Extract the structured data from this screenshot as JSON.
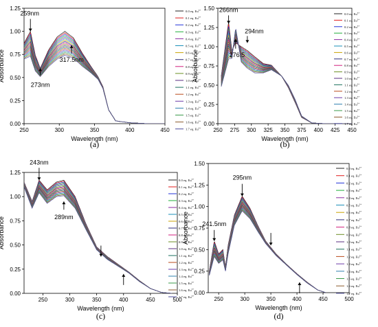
{
  "figure": {
    "legend_entries": [
      "0.0 eq. Eu",
      "0.1 eq. Eu",
      "0.2 eq. Eu",
      "0.3 eq. Eu",
      "0.4 eq. Eu",
      "0.5 eq. Eu",
      "0.6 eq. Eu",
      "0.7 eq. Eu",
      "0.8 eq. Eu",
      "0.9 eq. Eu",
      "1.0 eq. Eu",
      "1.1 eq. Eu",
      "1.2 eq. Eu",
      "1.3 eq. Eu",
      "1.4 eq. Eu",
      "1.5 eq. Eu",
      "1.6 eq. Eu",
      "1.7 eq. Eu"
    ],
    "legend_superscript": "3+",
    "series_colors": [
      "#202020",
      "#e01b1b",
      "#2030d8",
      "#1fae3a",
      "#8a2aa0",
      "#1a8fb8",
      "#c8a200",
      "#2b2b7a",
      "#d11d7c",
      "#6b8e23",
      "#5a2d82",
      "#1a6f5c",
      "#b84a1a",
      "#6a3aa8",
      "#2d7fae",
      "#3a9a4a",
      "#8b5a2b",
      "#4a4a9a"
    ]
  },
  "chart_data": [
    {
      "type": "line",
      "panel_label": "(a)",
      "xlabel": "Wavelength (nm)",
      "ylabel": "Absorbance",
      "xlim": [
        250,
        450
      ],
      "ylim": [
        0.0,
        1.25
      ],
      "xticks": [
        250,
        300,
        350,
        400,
        450
      ],
      "yticks": [
        "0.00",
        "0.25",
        "0.50",
        "0.75",
        "1.00",
        "1.25"
      ],
      "series_count": 18,
      "annotations": [
        {
          "text": "259nm",
          "x": 259,
          "y": 1.0
        },
        {
          "text": "273nm",
          "x": 273,
          "y": 0.6
        },
        {
          "text": "317.5nm",
          "x": 317.5,
          "y": 0.85
        }
      ],
      "curves": [
        {
          "name": "0.0 eq. Eu",
          "x": [
            250,
            259,
            266,
            273,
            285,
            297,
            308,
            320,
            333,
            345,
            355,
            362,
            370,
            380,
            400,
            425,
            450
          ],
          "y": [
            0.87,
            1.0,
            0.74,
            0.6,
            0.8,
            0.94,
            1.0,
            0.93,
            0.76,
            0.62,
            0.51,
            0.4,
            0.15,
            0.03,
            0.01,
            0.0,
            0.0
          ]
        },
        {
          "name": "1.7 eq. Eu",
          "x": [
            250,
            259,
            266,
            273,
            285,
            297,
            308,
            320,
            333,
            345,
            355,
            362,
            370,
            380,
            400,
            425,
            450
          ],
          "y": [
            0.7,
            0.73,
            0.57,
            0.51,
            0.62,
            0.7,
            0.74,
            0.71,
            0.62,
            0.55,
            0.48,
            0.38,
            0.15,
            0.03,
            0.01,
            0.0,
            0.0
          ]
        }
      ]
    },
    {
      "type": "line",
      "panel_label": "(b)",
      "xlabel": "Wavelength (nm)",
      "ylabel": "Absorbance",
      "xlim": [
        250,
        450
      ],
      "ylim": [
        0.0,
        1.5
      ],
      "xticks": [
        250,
        275,
        300,
        325,
        350,
        375,
        400,
        425,
        450
      ],
      "yticks": [
        "0.00",
        "0.25",
        "0.50",
        "0.75",
        "1.00",
        "1.25",
        "1.50"
      ],
      "series_count": 18,
      "annotations": [
        {
          "text": "266nm",
          "x": 266,
          "y": 1.3
        },
        {
          "text": "276.5",
          "x": 276.5,
          "y": 1.1
        },
        {
          "text": "294nm",
          "x": 294,
          "y": 1.05
        }
      ],
      "curves": [
        {
          "name": "0.0 eq. Eu",
          "x": [
            255,
            266,
            271,
            276.5,
            285,
            294,
            305,
            318,
            330,
            345,
            355,
            365,
            375,
            390,
            410,
            430,
            450
          ],
          "y": [
            0.62,
            1.32,
            0.95,
            1.05,
            1.0,
            0.95,
            0.87,
            0.78,
            0.76,
            0.62,
            0.47,
            0.28,
            0.08,
            0.01,
            0.0,
            0.0,
            0.0
          ]
        },
        {
          "name": "1.7 eq. Eu",
          "x": [
            255,
            266,
            271,
            276.5,
            285,
            294,
            305,
            318,
            330,
            345,
            355,
            365,
            375,
            390,
            410,
            430,
            450
          ],
          "y": [
            0.48,
            0.84,
            0.85,
            1.25,
            0.8,
            0.72,
            0.66,
            0.66,
            0.7,
            0.62,
            0.5,
            0.32,
            0.1,
            0.01,
            0.0,
            0.0,
            0.0
          ]
        }
      ]
    },
    {
      "type": "line",
      "panel_label": "(c)",
      "xlabel": "Wavelength (nm)",
      "ylabel": "Absorbance",
      "xlim": [
        215,
        500
      ],
      "ylim": [
        0.0,
        1.25
      ],
      "xticks": [
        250,
        300,
        350,
        400,
        450,
        500
      ],
      "yticks": [
        "0.00",
        "0.25",
        "0.50",
        "0.75",
        "1.00",
        "1.25"
      ],
      "series_count": 18,
      "annotations": [
        {
          "text": "243nm",
          "x": 243,
          "y": 1.17
        },
        {
          "text": "289nm",
          "x": 289,
          "y": 0.95
        },
        {
          "text": "",
          "x": 358,
          "y": 0.38
        },
        {
          "text": "",
          "x": 400,
          "y": 0.2
        }
      ],
      "curves": [
        {
          "name": "0.0 eq. Eu",
          "x": [
            215,
            230,
            243,
            258,
            275,
            289,
            310,
            330,
            350,
            370,
            390,
            410,
            430,
            450,
            470,
            490
          ],
          "y": [
            1.15,
            0.95,
            1.17,
            1.07,
            1.15,
            1.17,
            1.0,
            0.72,
            0.48,
            0.38,
            0.3,
            0.22,
            0.13,
            0.05,
            0.01,
            0.0
          ]
        },
        {
          "name": "1.7 eq. Eu",
          "x": [
            215,
            230,
            243,
            258,
            275,
            289,
            310,
            330,
            350,
            370,
            390,
            410,
            430,
            450,
            470,
            490
          ],
          "y": [
            1.1,
            0.88,
            1.04,
            0.93,
            1.0,
            1.01,
            0.88,
            0.66,
            0.45,
            0.35,
            0.28,
            0.21,
            0.12,
            0.05,
            0.01,
            0.0
          ]
        }
      ]
    },
    {
      "type": "line",
      "panel_label": "(d)",
      "xlabel": "Wavelength (nm)",
      "ylabel": "Absorbance",
      "xlim": [
        230,
        500
      ],
      "ylim": [
        0.0,
        1.5
      ],
      "xticks": [
        250,
        300,
        350,
        400,
        450,
        500
      ],
      "yticks": [
        "0.00",
        "0.25",
        "0.50",
        "0.75",
        "1.00",
        "1.25",
        "1.50"
      ],
      "series_count": 18,
      "annotations": [
        {
          "text": "241.5nm",
          "x": 241.5,
          "y": 0.6
        },
        {
          "text": "295nm",
          "x": 295,
          "y": 1.12
        },
        {
          "text": "",
          "x": 350,
          "y": 0.55
        },
        {
          "text": "",
          "x": 405,
          "y": 0.12
        }
      ],
      "curves": [
        {
          "name": "0.0 eq. Eu",
          "x": [
            232,
            241.5,
            250,
            258,
            263,
            268,
            280,
            295,
            310,
            325,
            340,
            360,
            380,
            400,
            420,
            440,
            455
          ],
          "y": [
            0.25,
            0.6,
            0.45,
            0.5,
            0.3,
            0.55,
            0.9,
            1.12,
            0.98,
            0.78,
            0.6,
            0.45,
            0.33,
            0.22,
            0.12,
            0.03,
            0.0
          ]
        },
        {
          "name": "1.7 eq. Eu",
          "x": [
            232,
            241.5,
            250,
            258,
            263,
            268,
            280,
            295,
            310,
            325,
            340,
            360,
            380,
            400,
            420,
            440,
            455
          ],
          "y": [
            0.2,
            0.42,
            0.34,
            0.38,
            0.25,
            0.45,
            0.78,
            0.95,
            0.86,
            0.71,
            0.57,
            0.43,
            0.32,
            0.21,
            0.11,
            0.03,
            0.0
          ]
        }
      ]
    }
  ]
}
